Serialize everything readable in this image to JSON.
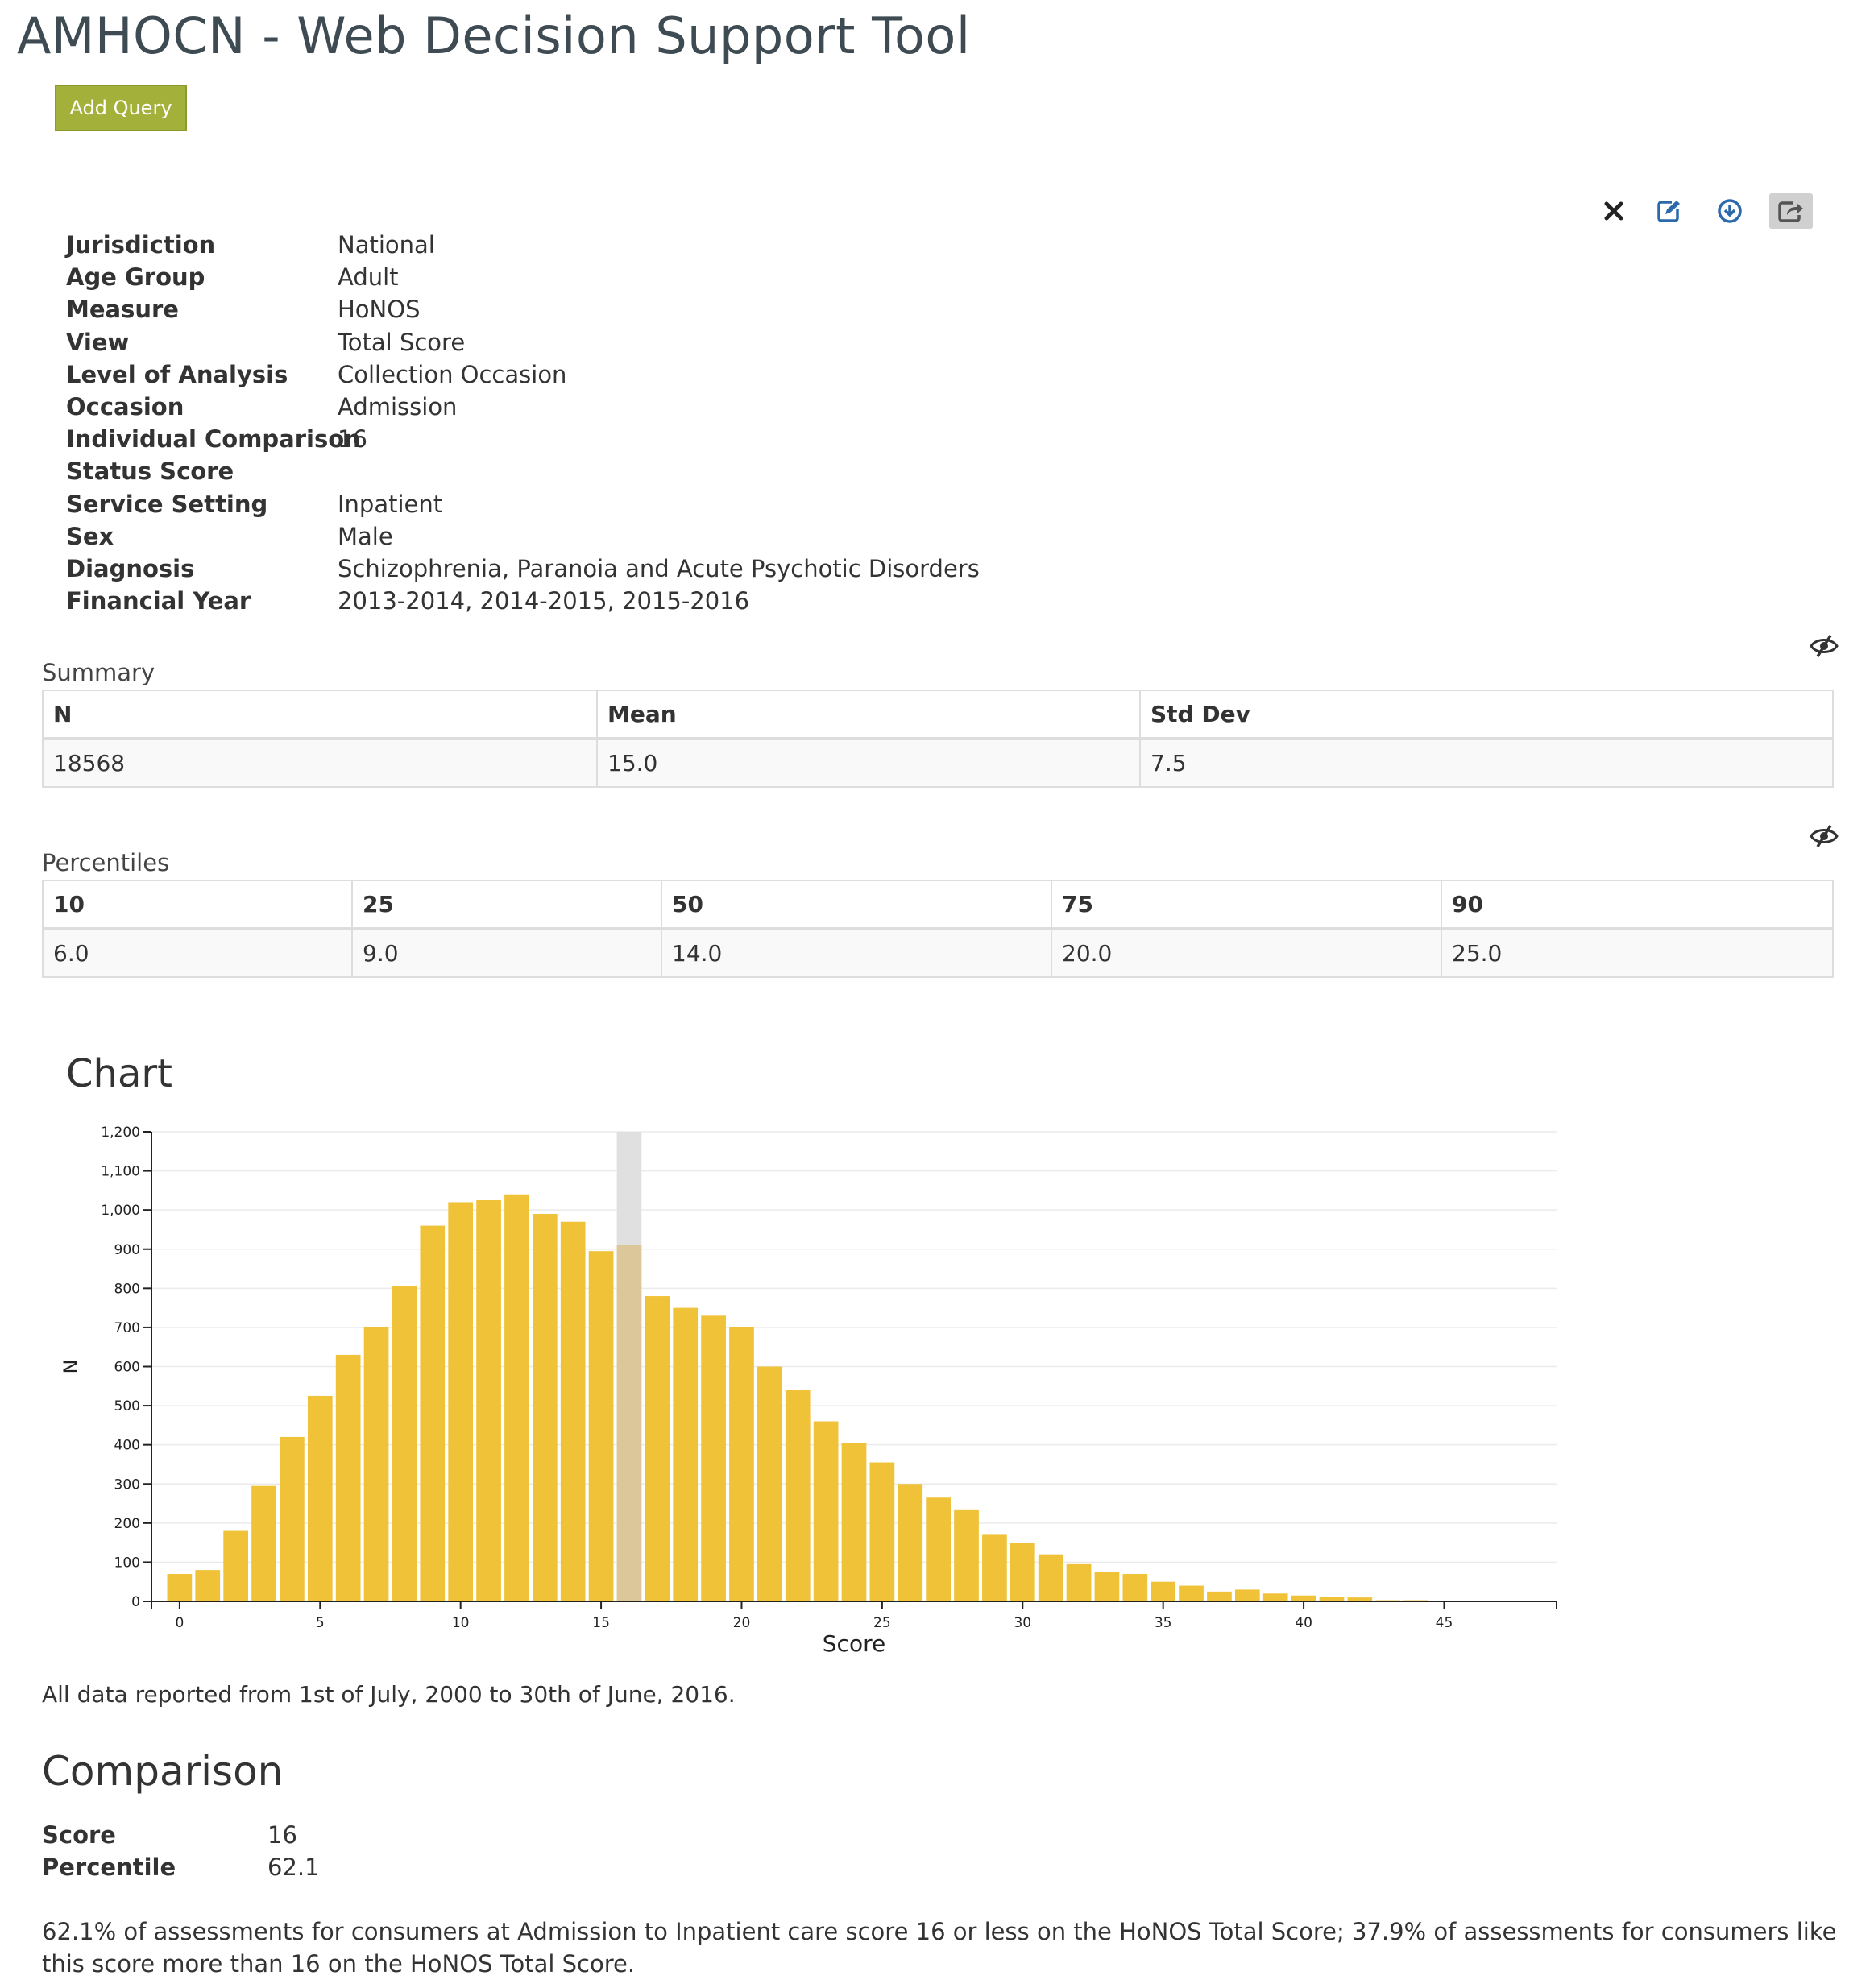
{
  "app": {
    "title": "AMHOCN - Web Decision Support Tool",
    "add_query_label": "Add Query"
  },
  "toolbar": {
    "icons": [
      "close-icon",
      "edit-icon",
      "download-icon",
      "share-icon"
    ]
  },
  "criteria": [
    {
      "label": "Jurisdiction",
      "value": "National"
    },
    {
      "label": "Age Group",
      "value": "Adult"
    },
    {
      "label": "Measure",
      "value": "HoNOS"
    },
    {
      "label": "View",
      "value": "Total Score"
    },
    {
      "label": "Level of Analysis",
      "value": "Collection Occasion"
    },
    {
      "label": "Occasion",
      "value": "Admission"
    },
    {
      "label": "Individual Comparison",
      "value": "16"
    },
    {
      "label": "Status Score",
      "value": ""
    },
    {
      "label": "Service Setting",
      "value": "Inpatient"
    },
    {
      "label": "Sex",
      "value": "Male"
    },
    {
      "label": "Diagnosis",
      "value": "Schizophrenia, Paranoia and Acute Psychotic Disorders"
    },
    {
      "label": "Financial Year",
      "value": "2013-2014, 2014-2015, 2015-2016"
    }
  ],
  "summary": {
    "label": "Summary",
    "headers": [
      "N",
      "Mean",
      "Std Dev"
    ],
    "values": [
      "18568",
      "15.0",
      "7.5"
    ]
  },
  "percentiles": {
    "label": "Percentiles",
    "headers": [
      "10",
      "25",
      "50",
      "75",
      "90"
    ],
    "values": [
      "6.0",
      "9.0",
      "14.0",
      "20.0",
      "25.0"
    ]
  },
  "chart_heading": "Chart",
  "chart_data": {
    "type": "bar",
    "title": "",
    "xlabel": "Score",
    "ylabel": "N",
    "x": [
      0,
      1,
      2,
      3,
      4,
      5,
      6,
      7,
      8,
      9,
      10,
      11,
      12,
      13,
      14,
      15,
      16,
      17,
      18,
      19,
      20,
      21,
      22,
      23,
      24,
      25,
      26,
      27,
      28,
      29,
      30,
      31,
      32,
      33,
      34,
      35,
      36,
      37,
      38,
      39,
      40,
      41,
      42,
      43,
      44,
      45,
      46,
      47,
      48
    ],
    "values": [
      70,
      80,
      180,
      295,
      420,
      525,
      630,
      700,
      805,
      960,
      1020,
      1025,
      1040,
      990,
      970,
      895,
      910,
      780,
      750,
      730,
      700,
      600,
      540,
      460,
      405,
      355,
      300,
      265,
      235,
      170,
      150,
      120,
      95,
      75,
      70,
      50,
      40,
      25,
      30,
      20,
      15,
      12,
      10,
      3,
      3,
      2,
      2,
      1,
      1
    ],
    "highlight_x": 16,
    "ylim": [
      0,
      1200
    ],
    "y_ticks": [
      0,
      100,
      200,
      300,
      400,
      500,
      600,
      700,
      800,
      900,
      1000,
      1100,
      1200
    ],
    "y_tick_labels": [
      "0",
      "100",
      "200",
      "300",
      "400",
      "500",
      "600",
      "700",
      "800",
      "900",
      "1,000",
      "1,100",
      "1,200"
    ],
    "x_ticks": [
      0,
      5,
      10,
      15,
      20,
      25,
      30,
      35,
      40,
      45
    ],
    "grid": true,
    "colors": {
      "bar": "#f0c238",
      "highlight_bar": "#dcc79a",
      "highlight_band": "#e0e0e0"
    }
  },
  "footnote": "All data reported from 1st of July, 2000 to 30th of June, 2016.",
  "comparison": {
    "heading": "Comparison",
    "score_label": "Score",
    "score_value": "16",
    "percentile_label": "Percentile",
    "percentile_value": "62.1",
    "description": "62.1% of assessments for consumers at Admission to Inpatient care score 16 or less on the HoNOS Total Score; 37.9% of assessments for consumers like this score more than 16 on the HoNOS Total Score."
  }
}
